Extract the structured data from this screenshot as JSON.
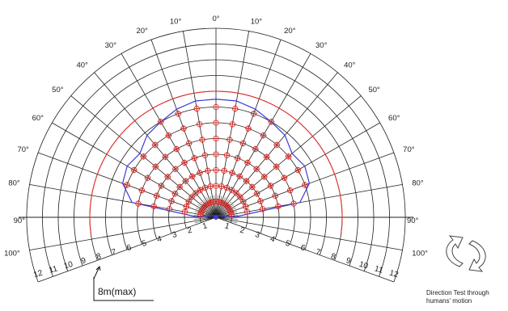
{
  "angle_labels": [
    "0°",
    "10°",
    "20°",
    "30°",
    "40°",
    "50°",
    "60°",
    "70°",
    "80°",
    "90°",
    "100°"
  ],
  "range_labels": [
    "1",
    "2",
    "3",
    "4",
    "5",
    "6",
    "7",
    "8",
    "9",
    "10",
    "11",
    "12"
  ],
  "max_range": {
    "label": "8m(max)",
    "value_m": 8
  },
  "detection_zone": {
    "boundary_radius_m": [
      7.5,
      7.5,
      7.3,
      7.0,
      6.8,
      6.3,
      6.5,
      6.3,
      5.4,
      1.3
    ],
    "boundary_angles_deg": [
      0,
      10,
      20,
      30,
      40,
      50,
      60,
      70,
      80,
      88
    ]
  },
  "colors": {
    "grid": "#1f1f1f",
    "max_arc": "#e0302c",
    "zone": "#3b3bd6",
    "marker": "#e0302c"
  },
  "caption": {
    "line1": "Direction Test through",
    "line2": "humans' motion"
  }
}
